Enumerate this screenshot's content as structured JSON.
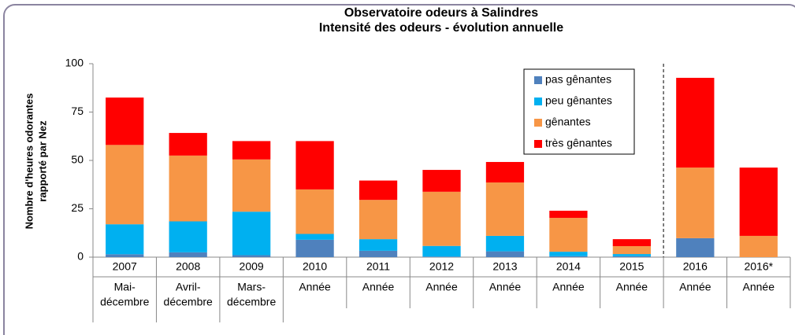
{
  "chart_data": {
    "type": "stacked_bar",
    "title": [
      "Observatoire odeurs à Salindres",
      "Intensité des odeurs - évolution annuelle"
    ],
    "y_label": [
      "Nombre d'heures odorantes",
      "rapporté par Nez"
    ],
    "categories": [
      "2007",
      "2008",
      "2009",
      "2010",
      "2011",
      "2012",
      "2013",
      "2014",
      "2015",
      "2016",
      "2016*"
    ],
    "periods": [
      [
        "Mai-",
        "décembre"
      ],
      [
        "Avril-",
        "décembre"
      ],
      [
        "Mars-",
        "décembre"
      ],
      [
        "Année"
      ],
      [
        "Année"
      ],
      [
        "Année"
      ],
      [
        "Année"
      ],
      [
        "Année"
      ],
      [
        "Année"
      ],
      [
        "Année"
      ],
      [
        "Année"
      ]
    ],
    "series": [
      {
        "name": "pas gênantes",
        "color": "#4f81bd",
        "values": [
          1.5,
          2.5,
          1,
          9,
          3.3,
          0.3,
          3,
          0.5,
          0.5,
          9.8,
          0
        ]
      },
      {
        "name": "peu gênantes",
        "color": "#00b0f0",
        "values": [
          15.5,
          16,
          22.5,
          3,
          6,
          5.5,
          8,
          2.3,
          1.1,
          0,
          0
        ]
      },
      {
        "name": "gênantes",
        "color": "#f79646",
        "values": [
          41,
          34,
          27,
          23,
          20.3,
          28,
          27.6,
          17.5,
          4.1,
          36.5,
          11
        ]
      },
      {
        "name": "très gênantes",
        "color": "#ff0000",
        "values": [
          24.5,
          11.7,
          9.5,
          25,
          10,
          11.3,
          10.6,
          3.7,
          3.6,
          46.4,
          35.3
        ]
      }
    ],
    "ylim": [
      0,
      100
    ],
    "yticks": [
      0,
      25,
      50,
      75,
      100
    ],
    "grid": false,
    "legend": "top-right"
  }
}
